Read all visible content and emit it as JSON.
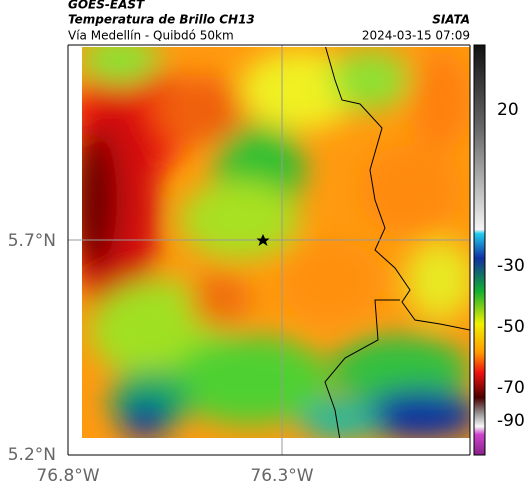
{
  "header": {
    "title": "GOES-EAST",
    "subtitle": "Temperatura de Brillo CH13",
    "caption": "Vía Medellín - Quibdó 50km",
    "source": "SIATA",
    "timestamp": "2024-03-15 07:09"
  },
  "axes": {
    "y_labels": [
      "5.7°N",
      "5.2°N"
    ],
    "x_labels": [
      "76.8°W",
      "76.3°W"
    ]
  },
  "colorbar": {
    "tick_labels": [
      "20",
      "-30",
      "-50",
      "-70",
      "-90"
    ]
  }
}
